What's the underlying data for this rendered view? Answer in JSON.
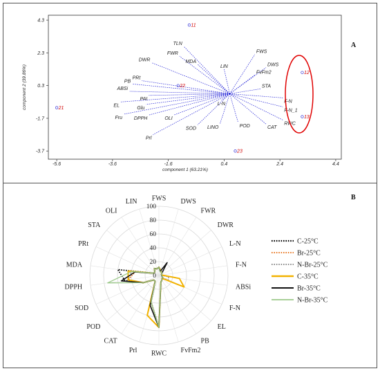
{
  "panel_a": {
    "letter": "A",
    "chart_data": {
      "type": "scatter",
      "xlabel": "component 1 (63.21%)",
      "ylabel": "component 2 (39.86%)",
      "x_ticks": [
        "-5.6",
        "-3.6",
        "-1.6",
        "0.4",
        "2.4",
        "4.4"
      ],
      "y_ticks": [
        "4.3",
        "2.3",
        "0.3",
        "-1.7",
        "-3.7"
      ],
      "xlim": [
        -5.9,
        4.6
      ],
      "ylim": [
        -4.2,
        4.6
      ],
      "observations": [
        {
          "label": "11",
          "x": -0.85,
          "y": 4.0
        },
        {
          "label": "21",
          "x": -5.6,
          "y": -1.05
        },
        {
          "label": "22",
          "x": -1.25,
          "y": 0.3
        },
        {
          "label": "12",
          "x": 3.2,
          "y": 1.1
        },
        {
          "label": "13",
          "x": 3.2,
          "y": -1.6
        },
        {
          "label": "23",
          "x": 0.8,
          "y": -3.7
        }
      ],
      "loadings": [
        {
          "label": "TLN",
          "x": -1.05,
          "y": 2.7
        },
        {
          "label": "FWR",
          "x": -1.2,
          "y": 2.1
        },
        {
          "label": "DWR",
          "x": -2.2,
          "y": 1.7
        },
        {
          "label": "MDA",
          "x": -0.55,
          "y": 1.6
        },
        {
          "label": "LIN",
          "x": 0.4,
          "y": 1.3
        },
        {
          "label": "FWS",
          "x": 1.5,
          "y": 2.2
        },
        {
          "label": "DWS",
          "x": 1.9,
          "y": 1.4
        },
        {
          "label": "FvFm2",
          "x": 1.5,
          "y": 0.95
        },
        {
          "label": "PRt",
          "x": -2.55,
          "y": 0.6
        },
        {
          "label": "PB",
          "x": -2.9,
          "y": 0.4
        },
        {
          "label": "ABSi",
          "x": -3.0,
          "y": -0.05
        },
        {
          "label": "PAI",
          "x": -2.3,
          "y": -0.3
        },
        {
          "label": "EL",
          "x": -3.3,
          "y": -0.7
        },
        {
          "label": "Glu",
          "x": -2.4,
          "y": -0.85
        },
        {
          "label": "Fru",
          "x": -3.2,
          "y": -1.45
        },
        {
          "label": "DPPH",
          "x": -2.3,
          "y": -1.5
        },
        {
          "label": "OLI",
          "x": -1.4,
          "y": -1.5
        },
        {
          "label": "Prl",
          "x": -2.15,
          "y": -2.7
        },
        {
          "label": "SOD",
          "x": -0.55,
          "y": -2.1
        },
        {
          "label": "L-N",
          "x": 0.3,
          "y": -0.6
        },
        {
          "label": "LINO",
          "x": 0.25,
          "y": -2.05
        },
        {
          "label": "POD",
          "x": 0.9,
          "y": -1.95
        },
        {
          "label": "STA",
          "x": 1.7,
          "y": 0.1
        },
        {
          "label": "F-N",
          "x": 2.5,
          "y": -0.45
        },
        {
          "label": "F-N_1",
          "x": 2.5,
          "y": -1.0
        },
        {
          "label": "CAT",
          "x": 1.9,
          "y": -2.05
        },
        {
          "label": "RWC",
          "x": 2.5,
          "y": -1.8
        }
      ]
    }
  },
  "panel_b": {
    "letter": "B",
    "chart_data": {
      "type": "radar",
      "axes": [
        "FWS",
        "DWS",
        "FWR",
        "DWR",
        "L-N",
        "F-N",
        "ABSi",
        "F-N",
        "EL",
        "PB",
        "FvFm2",
        "RWC",
        "Prl",
        "CAT",
        "POD",
        "SOD",
        "DPPH",
        "MDA",
        "PRt",
        "STA",
        "OLI",
        "LIN"
      ],
      "r_ticks": [
        20,
        40,
        60,
        80,
        100
      ],
      "r_tick_labels": [
        "20",
        "40",
        "60",
        "80",
        "100"
      ],
      "rmax": 100,
      "series": [
        {
          "name": "C-25°C",
          "color": "#000000",
          "dash": "1.6,1.8",
          "width": 1.8,
          "values": [
            12,
            6,
            6,
            6,
            4,
            4,
            4,
            6,
            6,
            8,
            10,
            75,
            40,
            10,
            10,
            25,
            50,
            60,
            8,
            8,
            12,
            10
          ]
        },
        {
          "name": "Br-25°C",
          "color": "#e87722",
          "dash": "1.6,1.8",
          "width": 1.6,
          "values": [
            12,
            6,
            6,
            6,
            4,
            4,
            4,
            6,
            6,
            8,
            10,
            75,
            40,
            10,
            10,
            25,
            45,
            35,
            8,
            8,
            12,
            10
          ]
        },
        {
          "name": "N-Br-25°C",
          "color": "#8a8a8a",
          "dash": "1.6,1.8",
          "width": 1.6,
          "values": [
            12,
            6,
            6,
            6,
            4,
            4,
            14,
            15,
            6,
            8,
            10,
            75,
            40,
            10,
            10,
            25,
            45,
            40,
            8,
            8,
            12,
            10
          ]
        },
        {
          "name": "C-35°C",
          "color": "#f2b200",
          "dash": "",
          "width": 2,
          "values": [
            12,
            8,
            6,
            6,
            4,
            4,
            30,
            40,
            6,
            8,
            10,
            75,
            60,
            10,
            10,
            25,
            45,
            45,
            8,
            8,
            12,
            10
          ]
        },
        {
          "name": "Br-35°C",
          "color": "#111111",
          "dash": "",
          "width": 1.6,
          "values": [
            12,
            6,
            22,
            6,
            4,
            4,
            4,
            6,
            6,
            8,
            10,
            75,
            45,
            10,
            10,
            25,
            55,
            35,
            8,
            8,
            12,
            10
          ]
        },
        {
          "name": "N-Br-35°C",
          "color": "#9cc98a",
          "dash": "",
          "width": 1.3,
          "values": [
            12,
            6,
            6,
            6,
            4,
            4,
            4,
            6,
            6,
            8,
            10,
            75,
            40,
            10,
            10,
            25,
            75,
            40,
            8,
            8,
            12,
            10
          ]
        }
      ]
    }
  }
}
